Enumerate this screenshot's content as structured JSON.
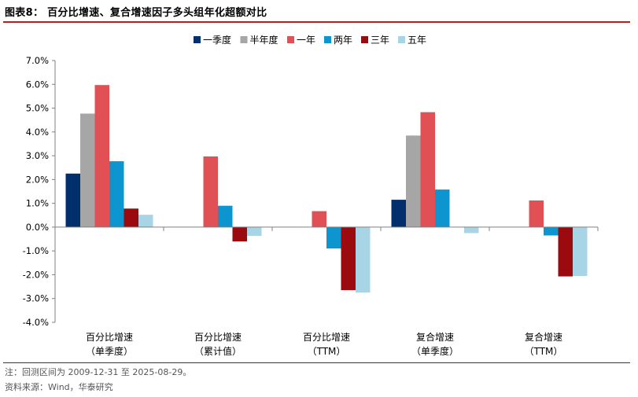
{
  "title": "图表8：   百分比增速、复合增速因子多头组年化超额对比",
  "notes": {
    "period": "注：回测区间为 2009-12-31 至 2025-08-29。",
    "source": "资料来源：Wind，华泰研究"
  },
  "chart_data": {
    "type": "bar",
    "categories": [
      [
        "百分比增速",
        "（单季度）"
      ],
      [
        "百分比增速",
        "（累计值）"
      ],
      [
        "百分比增速",
        "（TTM）"
      ],
      [
        "复合增速",
        "（单季度）"
      ],
      [
        "复合增速",
        "（TTM）"
      ]
    ],
    "series": [
      {
        "name": "一季度",
        "color": "#002f6c",
        "values": [
          2.25,
          null,
          null,
          1.15,
          null
        ]
      },
      {
        "name": "半年度",
        "color": "#a6a6a6",
        "values": [
          4.77,
          null,
          null,
          3.85,
          null
        ]
      },
      {
        "name": "一年",
        "color": "#e05055",
        "values": [
          5.97,
          2.97,
          0.67,
          4.83,
          1.12
        ]
      },
      {
        "name": "两年",
        "color": "#0d95d0",
        "values": [
          2.77,
          0.9,
          -0.9,
          1.58,
          -0.35
        ]
      },
      {
        "name": "三年",
        "color": "#9b0a0f",
        "values": [
          0.78,
          -0.6,
          -2.65,
          null,
          -2.07
        ]
      },
      {
        "name": "五年",
        "color": "#a8d5e5",
        "values": [
          0.52,
          -0.37,
          -2.75,
          -0.25,
          -2.05
        ]
      }
    ],
    "ylim": [
      -4.0,
      7.0
    ],
    "yticks": [
      "7.0%",
      "6.0%",
      "5.0%",
      "4.0%",
      "3.0%",
      "2.0%",
      "1.0%",
      "0.0%",
      "-1.0%",
      "-2.0%",
      "-3.0%",
      "-4.0%"
    ],
    "legend_position": "top-center",
    "grid": false
  }
}
